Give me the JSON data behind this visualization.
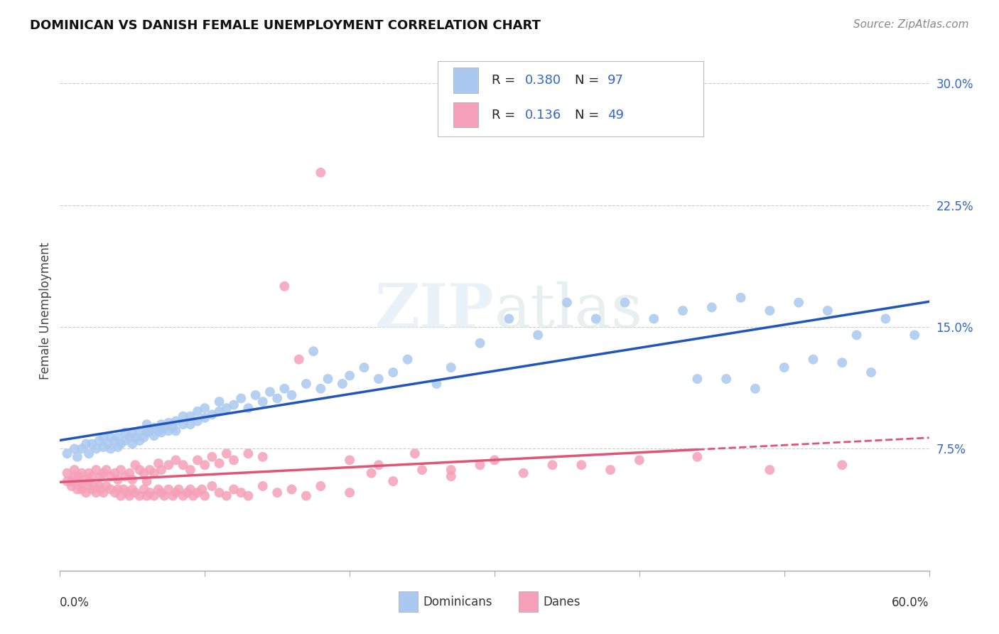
{
  "title": "DOMINICAN VS DANISH FEMALE UNEMPLOYMENT CORRELATION CHART",
  "source": "Source: ZipAtlas.com",
  "ylabel": "Female Unemployment",
  "ytick_labels": [
    "7.5%",
    "15.0%",
    "22.5%",
    "30.0%"
  ],
  "ytick_values": [
    0.075,
    0.15,
    0.225,
    0.3
  ],
  "xlim": [
    0.0,
    0.6
  ],
  "ylim": [
    0.0,
    0.32
  ],
  "dominicans_color": "#aac8f0",
  "danes_color": "#f5a0b8",
  "dominicans_line_color": "#2255bb",
  "danes_line_color": "#e05575",
  "legend_R_dom": "0.380",
  "legend_N_dom": "97",
  "legend_R_dan": "0.136",
  "legend_N_dan": "49",
  "background_color": "#ffffff",
  "grid_color": "#cccccc",
  "title_fontsize": 13,
  "source_fontsize": 11,
  "axis_label_fontsize": 12,
  "tick_fontsize": 12,
  "dominicans_x": [
    0.005,
    0.01,
    0.012,
    0.015,
    0.018,
    0.02,
    0.022,
    0.025,
    0.027,
    0.03,
    0.03,
    0.033,
    0.035,
    0.035,
    0.038,
    0.04,
    0.04,
    0.042,
    0.045,
    0.045,
    0.048,
    0.05,
    0.05,
    0.052,
    0.055,
    0.055,
    0.058,
    0.06,
    0.06,
    0.062,
    0.065,
    0.065,
    0.068,
    0.07,
    0.07,
    0.072,
    0.075,
    0.075,
    0.078,
    0.08,
    0.08,
    0.085,
    0.085,
    0.09,
    0.09,
    0.095,
    0.095,
    0.1,
    0.1,
    0.105,
    0.11,
    0.11,
    0.115,
    0.12,
    0.125,
    0.13,
    0.135,
    0.14,
    0.145,
    0.15,
    0.155,
    0.16,
    0.17,
    0.175,
    0.18,
    0.185,
    0.195,
    0.2,
    0.21,
    0.22,
    0.23,
    0.24,
    0.26,
    0.27,
    0.29,
    0.31,
    0.33,
    0.35,
    0.37,
    0.39,
    0.41,
    0.43,
    0.45,
    0.47,
    0.49,
    0.51,
    0.53,
    0.55,
    0.57,
    0.59,
    0.44,
    0.46,
    0.48,
    0.5,
    0.52,
    0.54,
    0.56
  ],
  "dominicans_y": [
    0.072,
    0.075,
    0.07,
    0.075,
    0.078,
    0.072,
    0.078,
    0.075,
    0.08,
    0.076,
    0.082,
    0.078,
    0.075,
    0.082,
    0.08,
    0.076,
    0.082,
    0.078,
    0.08,
    0.085,
    0.082,
    0.078,
    0.085,
    0.082,
    0.08,
    0.086,
    0.082,
    0.085,
    0.09,
    0.086,
    0.083,
    0.088,
    0.086,
    0.085,
    0.09,
    0.088,
    0.086,
    0.091,
    0.088,
    0.086,
    0.092,
    0.09,
    0.095,
    0.09,
    0.095,
    0.092,
    0.098,
    0.094,
    0.1,
    0.096,
    0.098,
    0.104,
    0.1,
    0.102,
    0.106,
    0.1,
    0.108,
    0.104,
    0.11,
    0.106,
    0.112,
    0.108,
    0.115,
    0.135,
    0.112,
    0.118,
    0.115,
    0.12,
    0.125,
    0.118,
    0.122,
    0.13,
    0.115,
    0.125,
    0.14,
    0.155,
    0.145,
    0.165,
    0.155,
    0.165,
    0.155,
    0.16,
    0.162,
    0.168,
    0.16,
    0.165,
    0.16,
    0.145,
    0.155,
    0.145,
    0.118,
    0.118,
    0.112,
    0.125,
    0.13,
    0.128,
    0.122
  ],
  "danes_x": [
    0.005,
    0.008,
    0.01,
    0.013,
    0.015,
    0.018,
    0.02,
    0.022,
    0.025,
    0.028,
    0.03,
    0.032,
    0.035,
    0.038,
    0.04,
    0.042,
    0.045,
    0.048,
    0.05,
    0.052,
    0.055,
    0.058,
    0.06,
    0.062,
    0.065,
    0.068,
    0.07,
    0.075,
    0.08,
    0.085,
    0.09,
    0.095,
    0.1,
    0.105,
    0.11,
    0.115,
    0.12,
    0.13,
    0.14,
    0.155,
    0.165,
    0.18,
    0.2,
    0.22,
    0.245,
    0.27,
    0.3,
    0.34,
    0.38
  ],
  "danes_y": [
    0.06,
    0.055,
    0.062,
    0.058,
    0.06,
    0.056,
    0.06,
    0.058,
    0.062,
    0.058,
    0.06,
    0.062,
    0.058,
    0.06,
    0.056,
    0.062,
    0.058,
    0.06,
    0.056,
    0.065,
    0.062,
    0.06,
    0.055,
    0.062,
    0.06,
    0.066,
    0.062,
    0.065,
    0.068,
    0.065,
    0.062,
    0.068,
    0.065,
    0.07,
    0.066,
    0.072,
    0.068,
    0.072,
    0.07,
    0.175,
    0.13,
    0.245,
    0.068,
    0.065,
    0.072,
    0.062,
    0.068,
    0.065,
    0.062
  ],
  "danes_x2": [
    0.005,
    0.008,
    0.01,
    0.012,
    0.013,
    0.015,
    0.016,
    0.018,
    0.02,
    0.022,
    0.023,
    0.025,
    0.027,
    0.028,
    0.03,
    0.032,
    0.035,
    0.038,
    0.04,
    0.042,
    0.044,
    0.046,
    0.048,
    0.05,
    0.052,
    0.055,
    0.058,
    0.06,
    0.062,
    0.065,
    0.068,
    0.07,
    0.072,
    0.075,
    0.078,
    0.08,
    0.082,
    0.085,
    0.088,
    0.09,
    0.092,
    0.095,
    0.098,
    0.1,
    0.105,
    0.11,
    0.115,
    0.12,
    0.125,
    0.13,
    0.14,
    0.15,
    0.16,
    0.17,
    0.18,
    0.2,
    0.215,
    0.23,
    0.25,
    0.27,
    0.29,
    0.32,
    0.36,
    0.4,
    0.44,
    0.49,
    0.54
  ],
  "danes_y2": [
    0.055,
    0.052,
    0.058,
    0.05,
    0.055,
    0.05,
    0.052,
    0.048,
    0.055,
    0.05,
    0.052,
    0.048,
    0.052,
    0.05,
    0.048,
    0.052,
    0.05,
    0.048,
    0.05,
    0.046,
    0.05,
    0.048,
    0.046,
    0.05,
    0.048,
    0.046,
    0.05,
    0.046,
    0.048,
    0.046,
    0.05,
    0.048,
    0.046,
    0.05,
    0.046,
    0.048,
    0.05,
    0.046,
    0.048,
    0.05,
    0.046,
    0.048,
    0.05,
    0.046,
    0.052,
    0.048,
    0.046,
    0.05,
    0.048,
    0.046,
    0.052,
    0.048,
    0.05,
    0.046,
    0.052,
    0.048,
    0.06,
    0.055,
    0.062,
    0.058,
    0.065,
    0.06,
    0.065,
    0.068,
    0.07,
    0.062,
    0.065
  ]
}
